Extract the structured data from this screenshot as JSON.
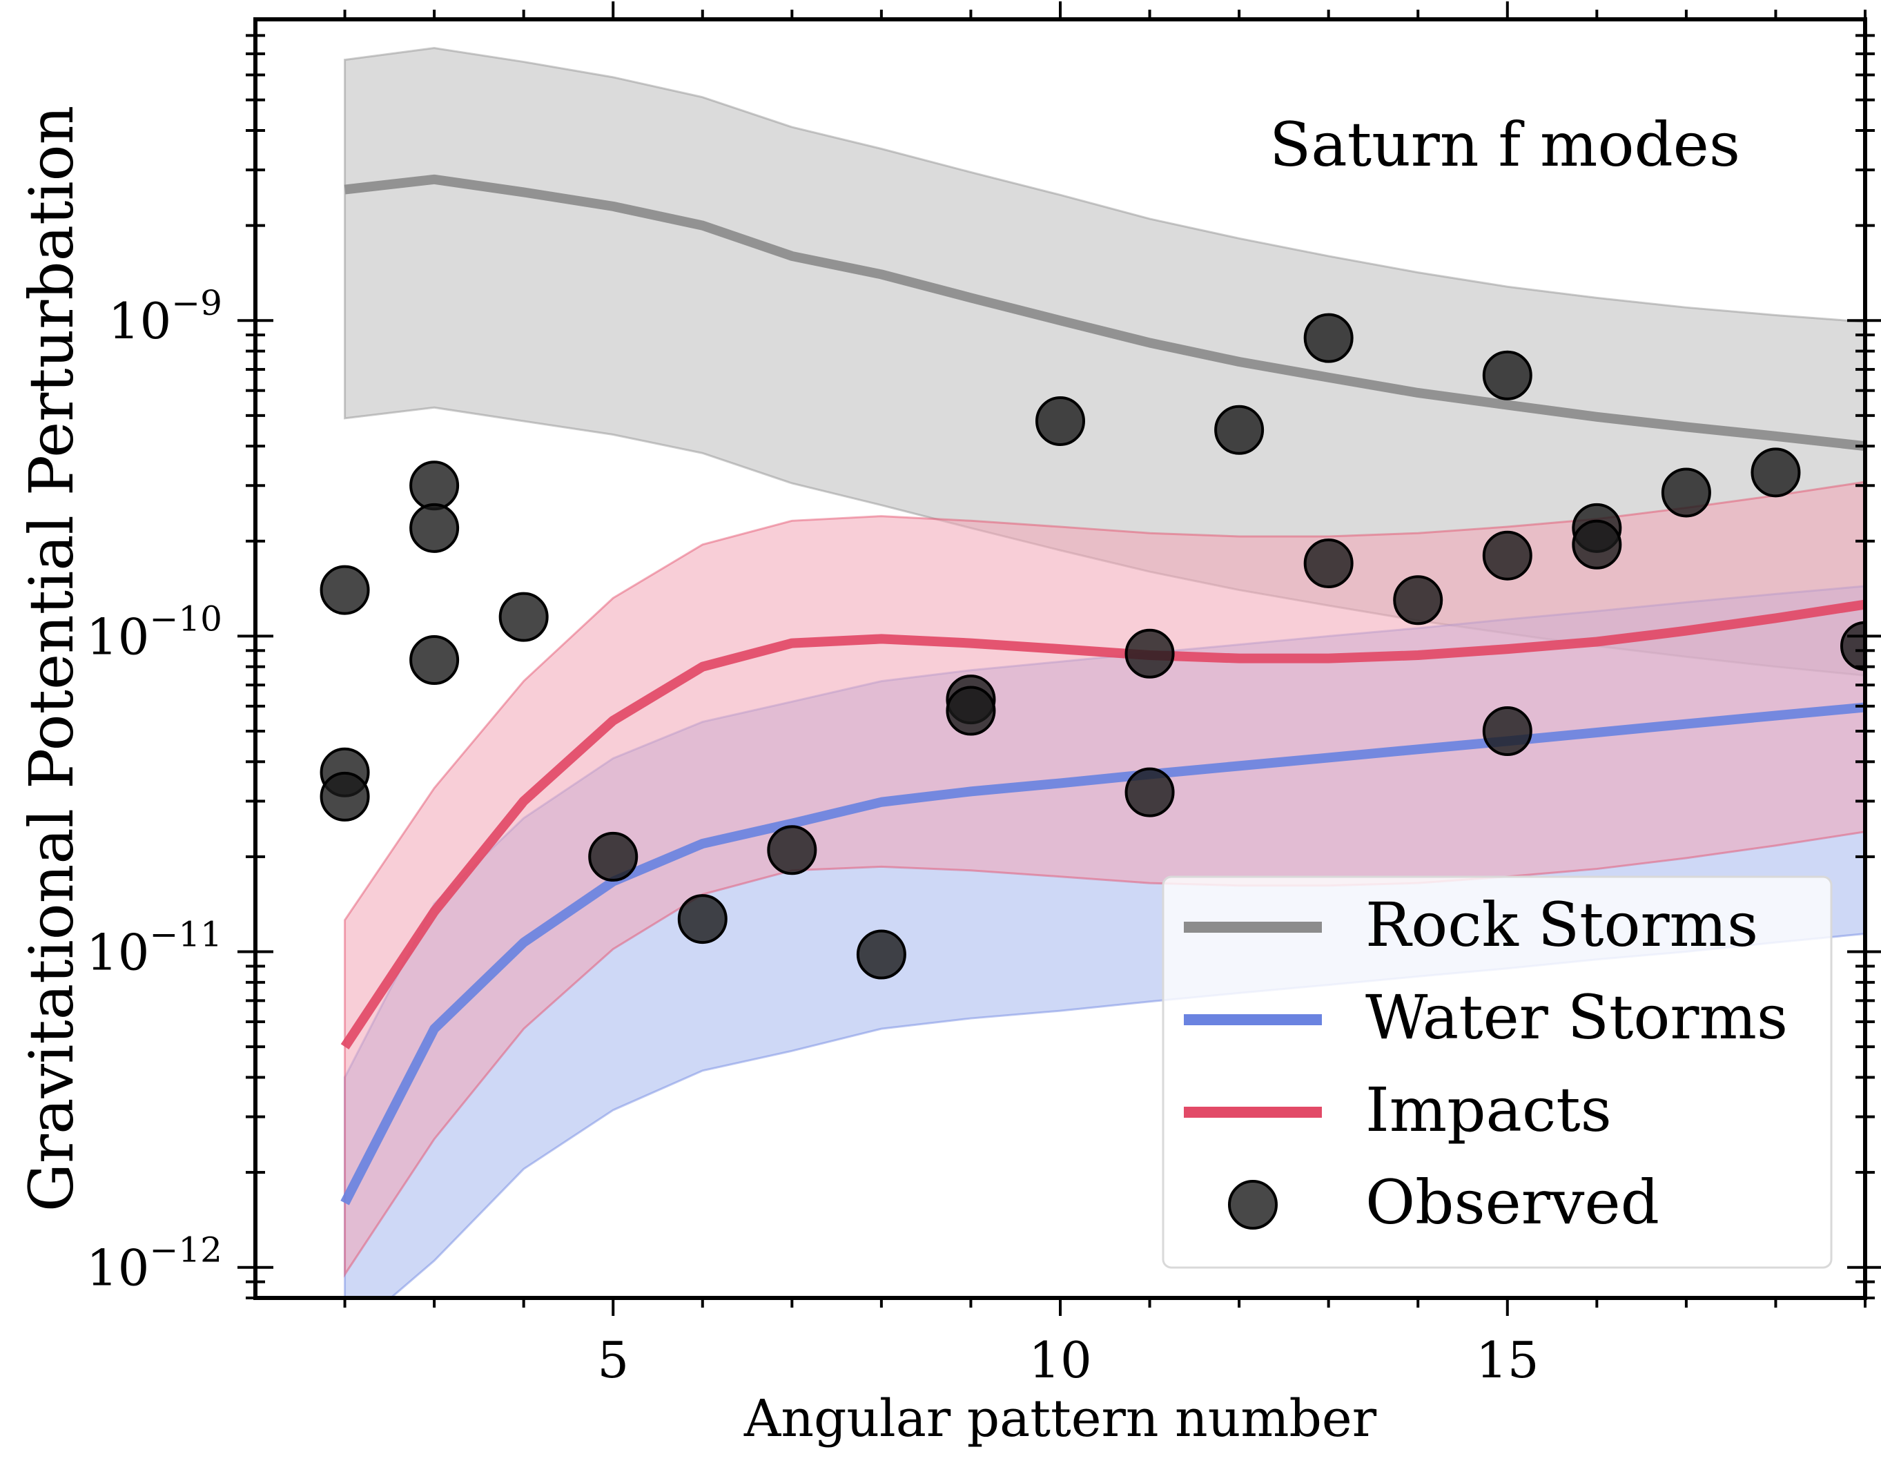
{
  "chart_data": {
    "type": "line",
    "title": "Saturn f modes",
    "xlabel": "Angular pattern number",
    "ylabel": "Gravitational Potential Perturbation",
    "xlim": [
      1,
      19
    ],
    "ylim": [
      8e-13,
      9e-09
    ],
    "yscale": "log",
    "x_ticks": [
      5,
      10,
      15
    ],
    "x_tick_labels": [
      "5",
      "10",
      "15"
    ],
    "y_ticks": [
      {
        "value": 1e-12,
        "base": "10",
        "exp": "−12"
      },
      {
        "value": 1e-11,
        "base": "10",
        "exp": "−11"
      },
      {
        "value": 1e-10,
        "base": "10",
        "exp": "−10"
      },
      {
        "value": 1e-09,
        "base": "10",
        "exp": "−9"
      }
    ],
    "legend_position": "bottom-right",
    "series": [
      {
        "name": "Rock Storms",
        "color": "#8c8c8c",
        "fill_color": "#bdbdbd",
        "x": [
          2,
          3,
          4,
          5,
          6,
          7,
          8,
          9,
          10,
          11,
          12,
          13,
          14,
          15,
          16,
          17,
          18,
          19
        ],
        "values": [
          2.6e-09,
          2.8e-09,
          2.55e-09,
          2.3e-09,
          2e-09,
          1.6e-09,
          1.4e-09,
          1.18e-09,
          1e-09,
          8.5e-10,
          7.4e-10,
          6.6e-10,
          5.9e-10,
          5.4e-10,
          4.95e-10,
          4.6e-10,
          4.3e-10,
          4e-10
        ],
        "lower": [
          4.9e-10,
          5.3e-10,
          4.8e-10,
          4.35e-10,
          3.8e-10,
          3.05e-10,
          2.6e-10,
          2.2e-10,
          1.87e-10,
          1.6e-10,
          1.4e-10,
          1.25e-10,
          1.12e-10,
          1.02e-10,
          9.3e-11,
          8.6e-11,
          8e-11,
          7.5e-11
        ],
        "upper": [
          6.7e-09,
          7.3e-09,
          6.6e-09,
          5.9e-09,
          5.1e-09,
          4.1e-09,
          3.5e-09,
          2.95e-09,
          2.5e-09,
          2.1e-09,
          1.82e-09,
          1.6e-09,
          1.42e-09,
          1.28e-09,
          1.18e-09,
          1.1e-09,
          1.04e-09,
          9.9e-10
        ]
      },
      {
        "name": "Water Storms",
        "color": "#6a83e0",
        "fill_color": "#a6b8ee",
        "x": [
          2,
          3,
          4,
          5,
          6,
          7,
          8,
          9,
          10,
          11,
          12,
          13,
          14,
          15,
          16,
          17,
          18,
          19
        ],
        "values": [
          1.6e-12,
          5.7e-12,
          1.07e-11,
          1.67e-11,
          2.2e-11,
          2.55e-11,
          2.98e-11,
          3.22e-11,
          3.42e-11,
          3.65e-11,
          3.88e-11,
          4.12e-11,
          4.38e-11,
          4.65e-11,
          4.95e-11,
          5.27e-11,
          5.6e-11,
          5.95e-11
        ],
        "lower": [
          6e-13,
          1.05e-12,
          2.05e-12,
          3.15e-12,
          4.2e-12,
          4.85e-12,
          5.7e-12,
          6.15e-12,
          6.5e-12,
          6.95e-12,
          7.4e-12,
          7.85e-12,
          8.35e-12,
          8.85e-12,
          9.45e-12,
          1e-11,
          1.07e-11,
          1.14e-11
        ],
        "upper": [
          4e-12,
          1.42e-11,
          2.65e-11,
          4.1e-11,
          5.35e-11,
          6.2e-11,
          7.2e-11,
          7.8e-11,
          8.3e-11,
          8.85e-11,
          9.4e-11,
          1e-10,
          1.06e-10,
          1.13e-10,
          1.2e-10,
          1.28e-10,
          1.36e-10,
          1.44e-10
        ]
      },
      {
        "name": "Impacts",
        "color": "#e24a67",
        "fill_color": "#f2a6b6",
        "x": [
          2,
          3,
          4,
          5,
          6,
          7,
          8,
          9,
          10,
          11,
          12,
          13,
          14,
          15,
          16,
          17,
          18,
          19
        ],
        "values": [
          5e-12,
          1.34e-11,
          3e-11,
          5.4e-11,
          8e-11,
          9.5e-11,
          9.8e-11,
          9.5e-11,
          9.1e-11,
          8.7e-11,
          8.5e-11,
          8.5e-11,
          8.7e-11,
          9.1e-11,
          9.6e-11,
          1.04e-10,
          1.14e-10,
          1.26e-10
        ],
        "lower": [
          9.5e-13,
          2.55e-12,
          5.7e-12,
          1.02e-11,
          1.52e-11,
          1.81e-11,
          1.86e-11,
          1.81e-11,
          1.73e-11,
          1.65e-11,
          1.62e-11,
          1.62e-11,
          1.65e-11,
          1.73e-11,
          1.83e-11,
          1.98e-11,
          2.17e-11,
          2.4e-11
        ],
        "upper": [
          1.26e-11,
          3.3e-11,
          7.2e-11,
          1.32e-10,
          1.95e-10,
          2.32e-10,
          2.4e-10,
          2.32e-10,
          2.22e-10,
          2.12e-10,
          2.07e-10,
          2.07e-10,
          2.12e-10,
          2.22e-10,
          2.35e-10,
          2.55e-10,
          2.79e-10,
          3.08e-10
        ]
      }
    ],
    "observed": {
      "name": "Observed",
      "color": "#1a1a1a",
      "points": [
        {
          "x": 2,
          "y": 1.4e-10
        },
        {
          "x": 2,
          "y": 3.7e-11
        },
        {
          "x": 2,
          "y": 3.1e-11
        },
        {
          "x": 3,
          "y": 3e-10
        },
        {
          "x": 3,
          "y": 2.2e-10
        },
        {
          "x": 3,
          "y": 8.4e-11
        },
        {
          "x": 4,
          "y": 1.15e-10
        },
        {
          "x": 5,
          "y": 2e-11
        },
        {
          "x": 6,
          "y": 1.27e-11
        },
        {
          "x": 7,
          "y": 2.1e-11
        },
        {
          "x": 8,
          "y": 9.8e-12
        },
        {
          "x": 9,
          "y": 6.3e-11
        },
        {
          "x": 9,
          "y": 5.8e-11
        },
        {
          "x": 10,
          "y": 4.8e-10
        },
        {
          "x": 11,
          "y": 8.8e-11
        },
        {
          "x": 11,
          "y": 3.2e-11
        },
        {
          "x": 12,
          "y": 4.5e-10
        },
        {
          "x": 13,
          "y": 8.8e-10
        },
        {
          "x": 13,
          "y": 1.7e-10
        },
        {
          "x": 14,
          "y": 1.3e-10
        },
        {
          "x": 15,
          "y": 6.7e-10
        },
        {
          "x": 15,
          "y": 1.8e-10
        },
        {
          "x": 15,
          "y": 5e-11
        },
        {
          "x": 16,
          "y": 2.2e-10
        },
        {
          "x": 16,
          "y": 1.95e-10
        },
        {
          "x": 17,
          "y": 2.85e-10
        },
        {
          "x": 18,
          "y": 3.3e-10
        },
        {
          "x": 19,
          "y": 9.3e-11
        }
      ]
    }
  }
}
